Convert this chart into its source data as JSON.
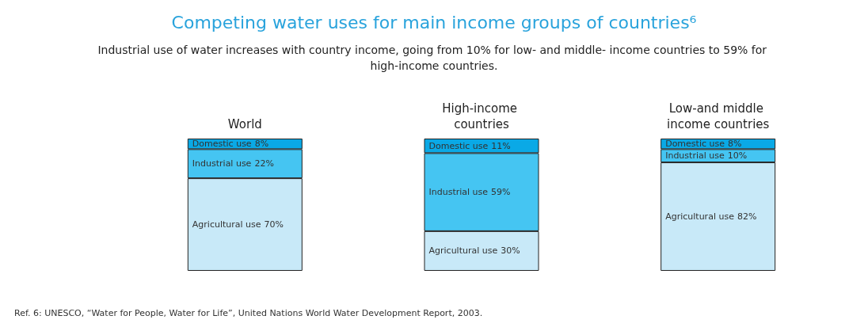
{
  "chart_data": {
    "type": "bar",
    "stacked": true,
    "title": "Competing water uses for main income groups of countries⁶",
    "subtitle": "Industrial use of water increases with country income, going from 10% for low- and middle- income countries to 59% for high-income countries.",
    "categories": [
      "World",
      "High-income countries",
      "Low-and middle income countries"
    ],
    "series": [
      {
        "name": "Agricultural use",
        "color": "#c8e9f8",
        "values": [
          70,
          30,
          82
        ],
        "value_labels": [
          "70%",
          "30%",
          "82%"
        ]
      },
      {
        "name": "Industrial use",
        "color": "#45c5f2",
        "values": [
          22,
          59,
          10
        ],
        "value_labels": [
          "22%",
          "59%",
          "10%"
        ]
      },
      {
        "name": "Domestic use",
        "color": "#0aa9e6",
        "values": [
          8,
          11,
          8
        ],
        "value_labels": [
          "8%",
          "11%",
          "8%"
        ]
      }
    ],
    "annotations": [
      "Ref. 6: UNESCO, “Water for People, Water for Life”, United Nations World Water Development Report, 2003."
    ]
  }
}
